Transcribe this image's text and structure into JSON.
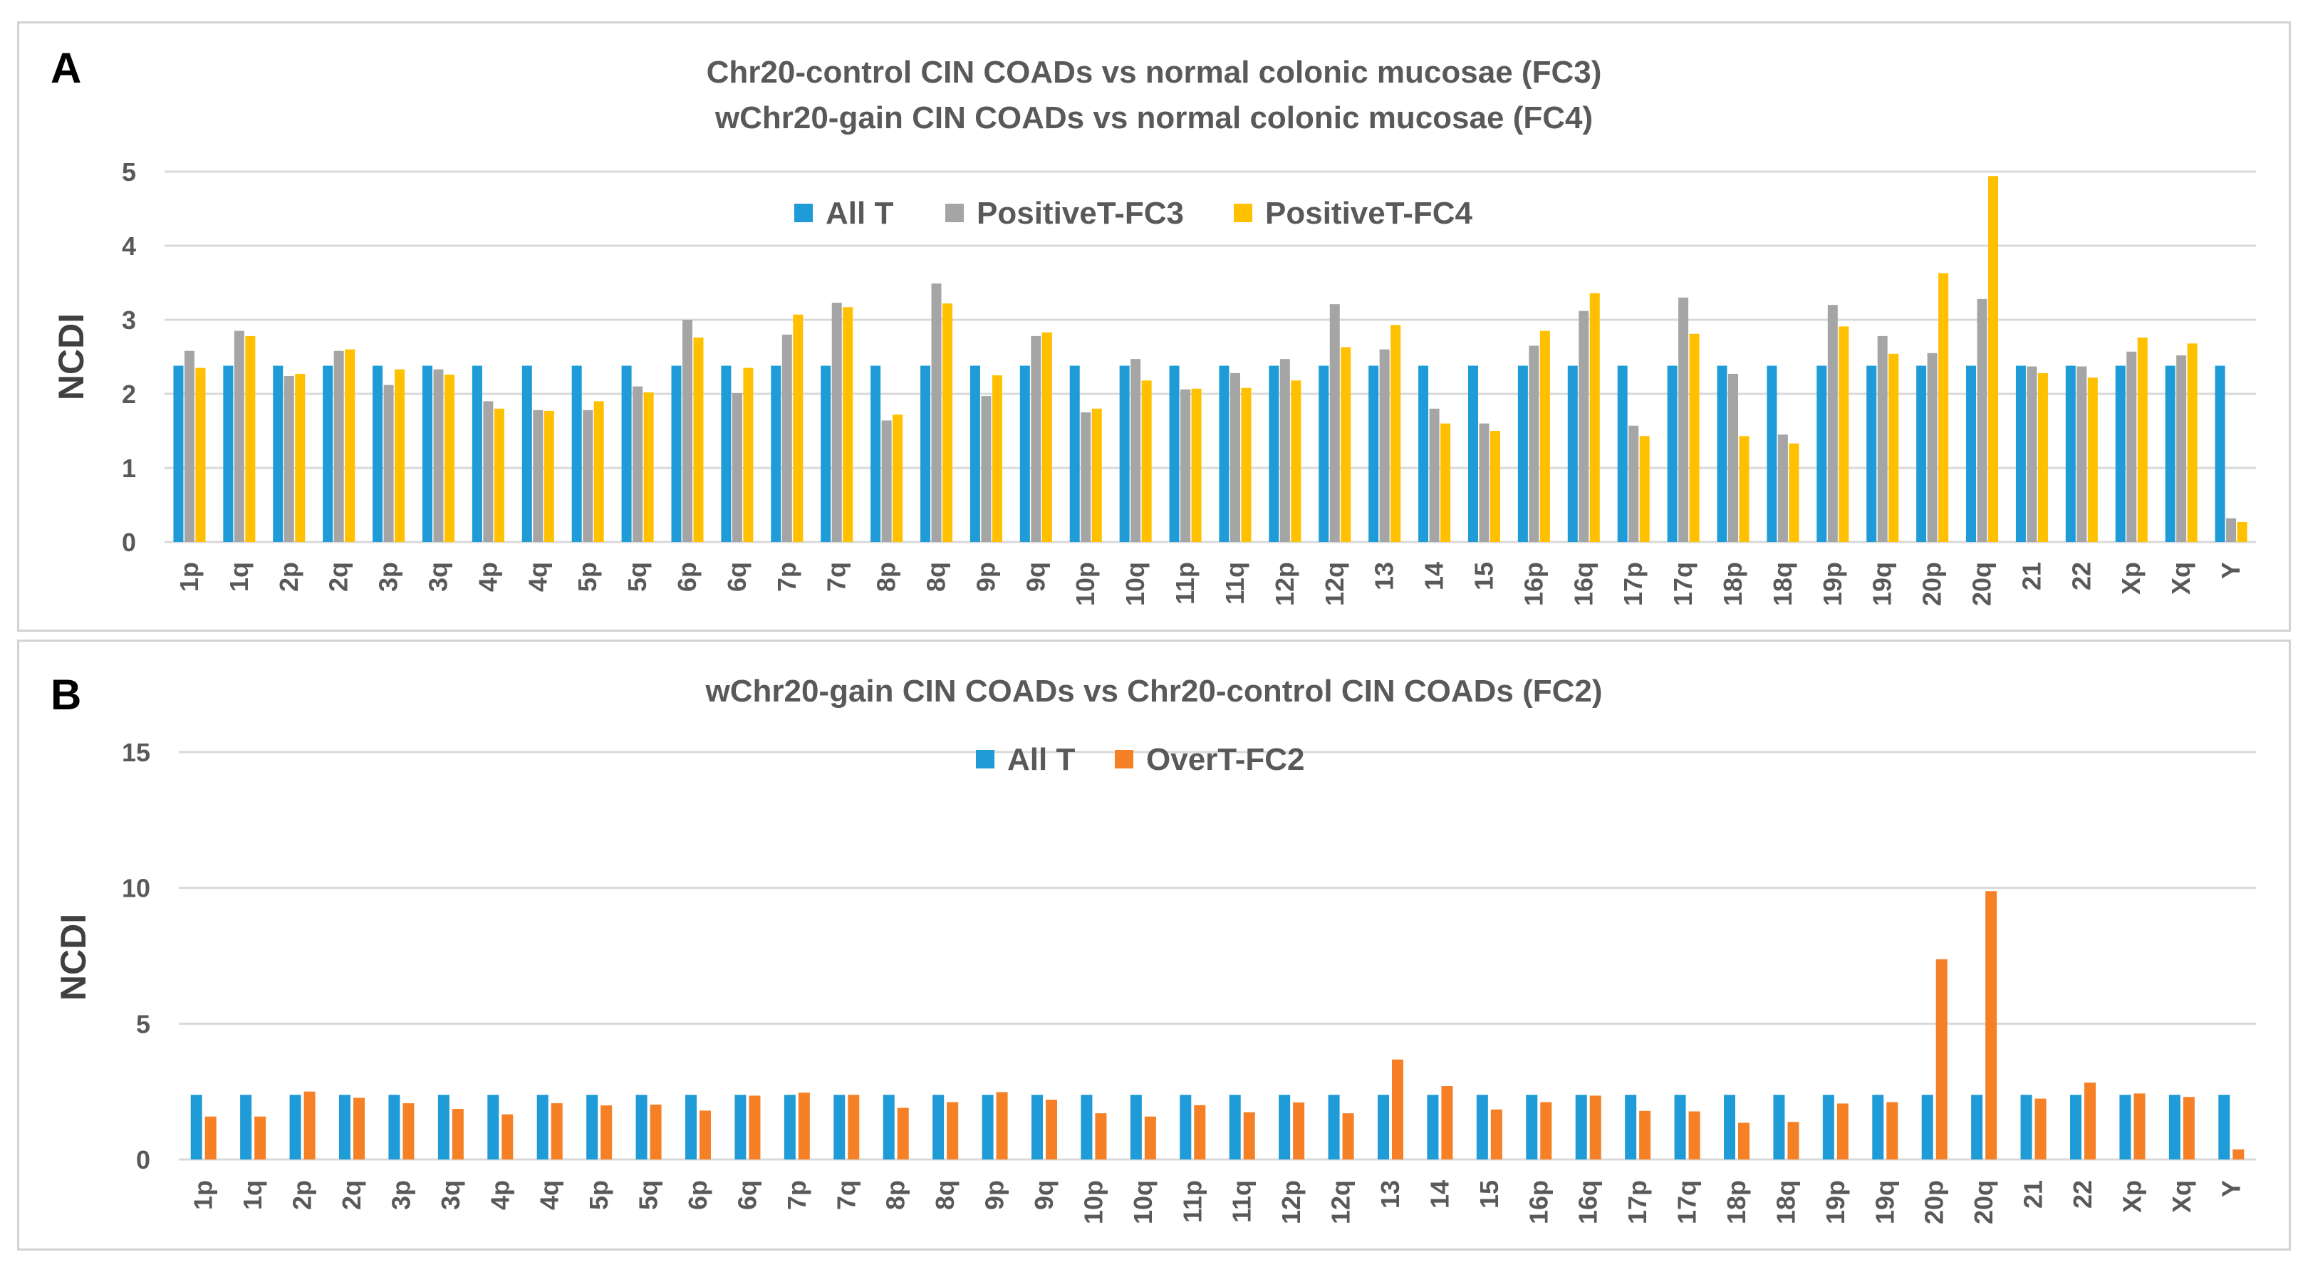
{
  "chart_data": [
    {
      "panel": "A",
      "type": "bar",
      "title": [
        "Chr20-control CIN COADs vs normal colonic mucosae (FC3)",
        "wChr20-gain CIN COADs vs normal colonic mucosae (FC4)"
      ],
      "xlabel": "",
      "ylabel": "NCDI",
      "ylim": [
        0,
        5
      ],
      "yticks": [
        0,
        1,
        2,
        3,
        4,
        5
      ],
      "grid": true,
      "legend_position": "top-center",
      "categories": [
        "1p",
        "1q",
        "2p",
        "2q",
        "3p",
        "3q",
        "4p",
        "4q",
        "5p",
        "5q",
        "6p",
        "6q",
        "7p",
        "7q",
        "8p",
        "8q",
        "9p",
        "9q",
        "10p",
        "10q",
        "11p",
        "11q",
        "12p",
        "12q",
        "13",
        "14",
        "15",
        "16p",
        "16q",
        "17p",
        "17q",
        "18p",
        "18q",
        "19p",
        "19q",
        "20p",
        "20q",
        "21",
        "22",
        "Xp",
        "Xq",
        "Y"
      ],
      "series": [
        {
          "name": "All T",
          "color": "#1f9bd7",
          "values": [
            2.38,
            2.38,
            2.38,
            2.38,
            2.38,
            2.38,
            2.38,
            2.38,
            2.38,
            2.38,
            2.38,
            2.38,
            2.38,
            2.38,
            2.38,
            2.38,
            2.38,
            2.38,
            2.38,
            2.38,
            2.38,
            2.38,
            2.38,
            2.38,
            2.38,
            2.38,
            2.38,
            2.38,
            2.38,
            2.38,
            2.38,
            2.38,
            2.38,
            2.38,
            2.38,
            2.38,
            2.38,
            2.38,
            2.38,
            2.38,
            2.38,
            2.38
          ]
        },
        {
          "name": "PositiveT-FC3",
          "color": "#a5a5a5",
          "values": [
            2.58,
            2.85,
            2.24,
            2.58,
            2.12,
            2.33,
            1.9,
            1.78,
            1.78,
            2.1,
            3.0,
            2.01,
            2.8,
            3.23,
            1.64,
            3.49,
            1.97,
            2.78,
            1.75,
            2.47,
            2.06,
            2.28,
            2.47,
            3.21,
            2.6,
            1.8,
            1.6,
            2.65,
            3.12,
            1.57,
            3.3,
            2.27,
            1.45,
            3.2,
            2.78,
            2.55,
            3.28,
            2.37,
            2.37,
            2.57,
            2.52,
            0.32
          ]
        },
        {
          "name": "PositiveT-FC4",
          "color": "#ffc000",
          "values": [
            2.35,
            2.78,
            2.27,
            2.6,
            2.33,
            2.26,
            1.8,
            1.77,
            1.9,
            2.02,
            2.76,
            2.35,
            3.07,
            3.17,
            1.72,
            3.22,
            2.25,
            2.83,
            1.8,
            2.18,
            2.07,
            2.08,
            2.18,
            2.63,
            2.93,
            1.6,
            1.5,
            2.85,
            3.36,
            1.43,
            2.81,
            1.43,
            1.33,
            2.91,
            2.54,
            3.63,
            4.94,
            2.28,
            2.22,
            2.76,
            2.68,
            0.27
          ]
        }
      ]
    },
    {
      "panel": "B",
      "type": "bar",
      "title": [
        "wChr20-gain CIN COADs vs Chr20-control CIN COADs (FC2)"
      ],
      "xlabel": "",
      "ylabel": "NCDI",
      "ylim": [
        0,
        15
      ],
      "yticks": [
        0,
        5,
        10,
        15
      ],
      "grid": true,
      "legend_position": "top-center",
      "categories": [
        "1p",
        "1q",
        "2p",
        "2q",
        "3p",
        "3q",
        "4p",
        "4q",
        "5p",
        "5q",
        "6p",
        "6q",
        "7p",
        "7q",
        "8p",
        "8q",
        "9p",
        "9q",
        "10p",
        "10q",
        "11p",
        "11q",
        "12p",
        "12q",
        "13",
        "14",
        "15",
        "16p",
        "16q",
        "17p",
        "17q",
        "18p",
        "18q",
        "19p",
        "19q",
        "20p",
        "20q",
        "21",
        "22",
        "Xp",
        "Xq",
        "Y"
      ],
      "series": [
        {
          "name": "All T",
          "color": "#1f9bd7",
          "values": [
            2.38,
            2.38,
            2.38,
            2.38,
            2.38,
            2.38,
            2.38,
            2.38,
            2.38,
            2.38,
            2.38,
            2.38,
            2.38,
            2.38,
            2.38,
            2.38,
            2.38,
            2.38,
            2.38,
            2.38,
            2.38,
            2.38,
            2.38,
            2.38,
            2.38,
            2.38,
            2.38,
            2.38,
            2.38,
            2.38,
            2.38,
            2.38,
            2.38,
            2.38,
            2.38,
            2.38,
            2.38,
            2.38,
            2.38,
            2.38,
            2.38,
            2.38
          ]
        },
        {
          "name": "OverT-FC2",
          "color": "#f58025",
          "values": [
            1.58,
            1.58,
            2.5,
            2.27,
            2.07,
            1.86,
            1.66,
            2.07,
            1.99,
            2.02,
            1.8,
            2.35,
            2.46,
            2.38,
            1.9,
            2.11,
            2.48,
            2.2,
            1.7,
            1.58,
            2.0,
            1.74,
            2.1,
            1.7,
            3.68,
            2.7,
            1.84,
            2.11,
            2.35,
            1.79,
            1.77,
            1.35,
            1.38,
            2.06,
            2.11,
            7.37,
            9.88,
            2.24,
            2.83,
            2.43,
            2.3,
            0.37
          ]
        }
      ]
    }
  ]
}
